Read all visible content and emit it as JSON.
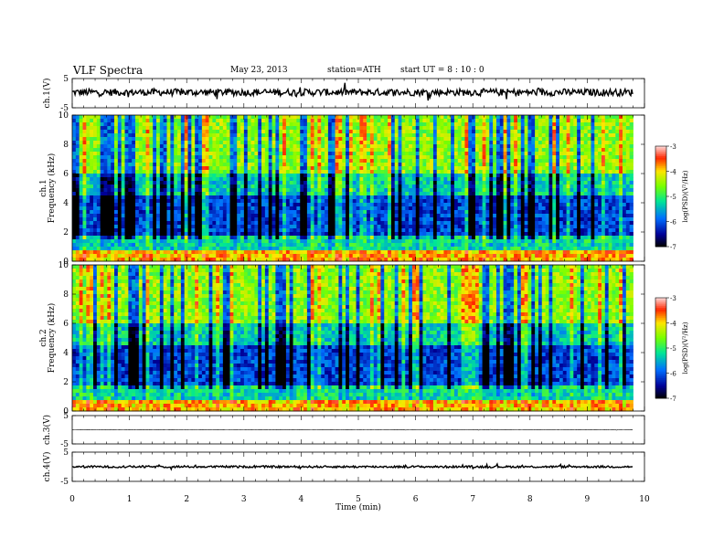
{
  "header": {
    "title": "VLF Spectra",
    "date": "May 23, 2013",
    "station": "station=ATH",
    "start": "start  UT =  8 : 10 : 0"
  },
  "chart_data": [
    {
      "type": "line",
      "name": "ch1-waveform",
      "ylabel": "ch.1(V)",
      "yticks": [
        "5",
        "-5"
      ],
      "ylim": [
        -5,
        5
      ],
      "xlim": [
        0,
        10
      ],
      "baseline": 0.3,
      "spread": 1.2
    },
    {
      "type": "heatmap",
      "name": "ch1-spectrogram",
      "ylabel_channel": "ch.1",
      "ylabel": "Frequency  (kHz)",
      "yticks": [
        "0",
        "2",
        "4",
        "6",
        "8",
        "10"
      ],
      "ylim": [
        0,
        10
      ],
      "xlim": [
        0,
        9.8
      ]
    },
    {
      "type": "heatmap",
      "name": "ch2-spectrogram",
      "ylabel_channel": "ch.2",
      "ylabel": "Frequency  (kHz)",
      "yticks": [
        "0",
        "2",
        "4",
        "6",
        "8",
        "10"
      ],
      "ylim": [
        0,
        10
      ],
      "xlim": [
        0,
        9.8
      ]
    },
    {
      "type": "line",
      "name": "ch3-waveform",
      "ylabel": "ch.3(V)",
      "yticks": [
        "5",
        "-5"
      ],
      "ylim": [
        -5,
        5
      ],
      "xlim": [
        0,
        10
      ],
      "baseline": 0,
      "spread": 0.08
    },
    {
      "type": "line",
      "name": "ch4-waveform",
      "ylabel": "ch.4(V)",
      "yticks": [
        "5",
        "-5"
      ],
      "ylim": [
        -5,
        5
      ],
      "xlim": [
        0,
        10
      ],
      "baseline": 0,
      "spread": 0.35
    }
  ],
  "xaxis": {
    "label": "Time  (min)",
    "ticks": [
      "0",
      "1",
      "2",
      "3",
      "4",
      "5",
      "6",
      "7",
      "8",
      "9",
      "10"
    ],
    "range": [
      0,
      10
    ]
  },
  "colorbars": [
    {
      "label": "log(PSD)(V²/Hz)",
      "ticks": [
        "-3",
        "-4",
        "-5",
        "-6",
        "-7"
      ],
      "range": [
        -7,
        -3
      ]
    },
    {
      "label": "log(PSD)(V²/Hz)",
      "ticks": [
        "-3",
        "-4",
        "-5",
        "-6",
        "-7"
      ],
      "range": [
        -7,
        -3
      ]
    }
  ]
}
